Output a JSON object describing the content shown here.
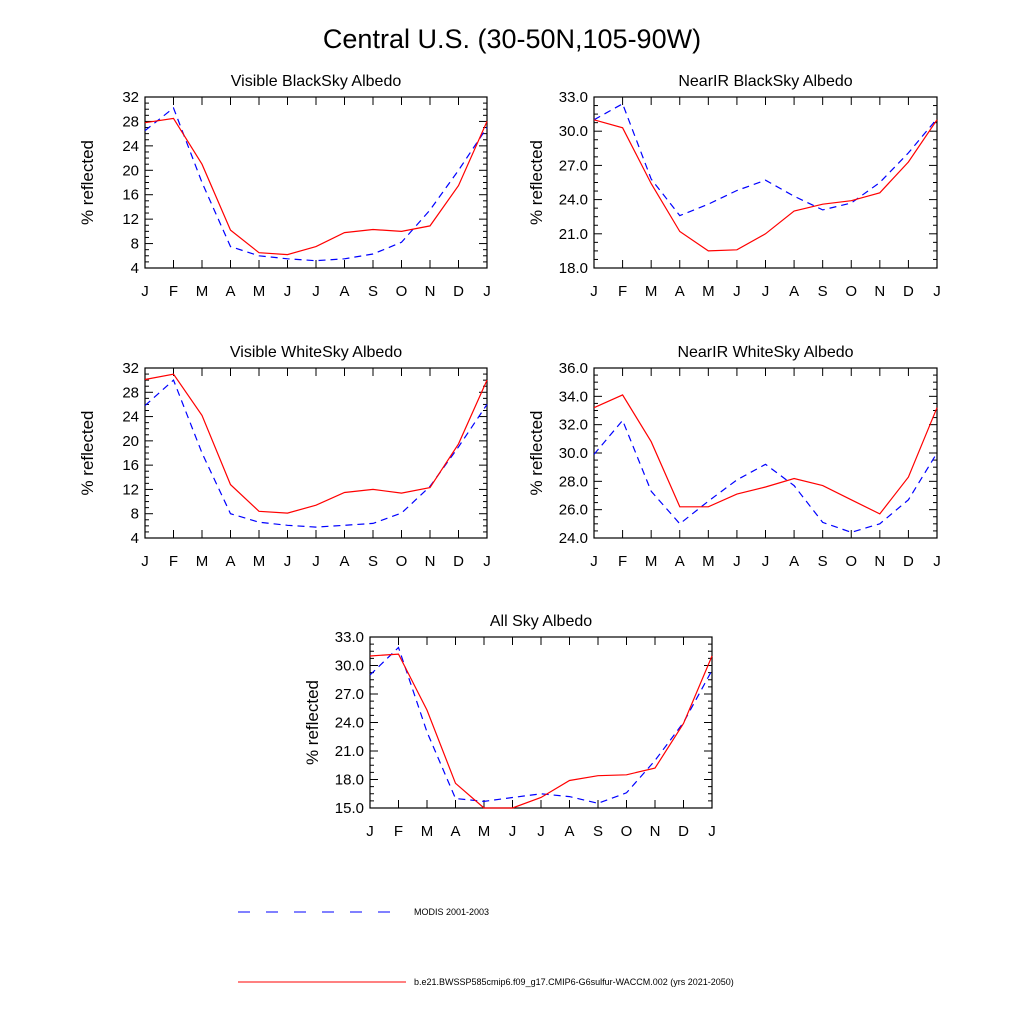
{
  "figure": {
    "title": "Central U.S. (30-50N,105-90W)"
  },
  "legend": [
    {
      "label": "MODIS 2001-2003",
      "color": "#0000ff",
      "style": "dashed"
    },
    {
      "label": "b.e21.BWSSP585cmip6.f09_g17.CMIP6-G6sulfur-WACCM.002 (yrs 2021-2050)",
      "color": "#ff0000",
      "style": "solid"
    }
  ],
  "chart_data": [
    {
      "type": "line",
      "title": "Visible BlackSky Albedo",
      "ylabel": "% reflected",
      "xlabel": "",
      "x": [
        "J",
        "F",
        "M",
        "A",
        "M",
        "J",
        "J",
        "A",
        "S",
        "O",
        "N",
        "D",
        "J"
      ],
      "ylim": [
        4,
        32
      ],
      "yticks": [
        "4",
        "8",
        "12",
        "16",
        "20",
        "24",
        "28",
        "32"
      ],
      "series": [
        {
          "name": "MODIS 2001-2003",
          "color": "#0000ff",
          "dash": true,
          "values": [
            26.5,
            30.2,
            18.0,
            7.5,
            6.0,
            5.5,
            5.2,
            5.5,
            6.3,
            8.2,
            13.5,
            20.0,
            27.0
          ]
        },
        {
          "name": "b.e21.BWSSP585cmip6.f09_g17.CMIP6-G6sulfur-WACCM.002 (yrs 2021-2050)",
          "color": "#ff0000",
          "dash": false,
          "values": [
            27.8,
            28.5,
            21.0,
            10.2,
            6.5,
            6.2,
            7.5,
            9.8,
            10.3,
            10.0,
            10.9,
            17.5,
            28.0
          ]
        }
      ]
    },
    {
      "type": "line",
      "title": "NearIR BlackSky Albedo",
      "ylabel": "% reflected",
      "xlabel": "",
      "x": [
        "J",
        "F",
        "M",
        "A",
        "M",
        "J",
        "J",
        "A",
        "S",
        "O",
        "N",
        "D",
        "J"
      ],
      "ylim": [
        18.0,
        33.0
      ],
      "yticks": [
        "18.0",
        "21.0",
        "24.0",
        "27.0",
        "30.0",
        "33.0"
      ],
      "series": [
        {
          "name": "MODIS 2001-2003",
          "color": "#0000ff",
          "dash": true,
          "values": [
            31.0,
            32.4,
            25.8,
            22.6,
            23.6,
            24.8,
            25.7,
            24.3,
            23.1,
            23.7,
            25.5,
            28.1,
            31.1
          ]
        },
        {
          "name": "b.e21.BWSSP585cmip6.f09_g17.CMIP6-G6sulfur-WACCM.002 (yrs 2021-2050)",
          "color": "#ff0000",
          "dash": false,
          "values": [
            31.0,
            30.3,
            25.4,
            21.2,
            19.5,
            19.6,
            21.0,
            23.0,
            23.6,
            23.9,
            24.6,
            27.3,
            31.0
          ]
        }
      ]
    },
    {
      "type": "line",
      "title": "Visible WhiteSky Albedo",
      "ylabel": "% reflected",
      "xlabel": "",
      "x": [
        "J",
        "F",
        "M",
        "A",
        "M",
        "J",
        "J",
        "A",
        "S",
        "O",
        "N",
        "D",
        "J"
      ],
      "ylim": [
        4,
        32
      ],
      "yticks": [
        "4",
        "8",
        "12",
        "16",
        "20",
        "24",
        "28",
        "32"
      ],
      "series": [
        {
          "name": "MODIS 2001-2003",
          "color": "#0000ff",
          "dash": true,
          "values": [
            25.8,
            30.0,
            18.0,
            8.0,
            6.6,
            6.1,
            5.8,
            6.1,
            6.4,
            8.1,
            12.5,
            19.0,
            26.0
          ]
        },
        {
          "name": "b.e21.BWSSP585cmip6.f09_g17.CMIP6-G6sulfur-WACCM.002 (yrs 2021-2050)",
          "color": "#ff0000",
          "dash": false,
          "values": [
            30.1,
            31.0,
            24.2,
            12.8,
            8.4,
            8.1,
            9.4,
            11.5,
            12.0,
            11.4,
            12.3,
            19.5,
            30.0
          ]
        }
      ]
    },
    {
      "type": "line",
      "title": "NearIR WhiteSky Albedo",
      "ylabel": "% reflected",
      "xlabel": "",
      "x": [
        "J",
        "F",
        "M",
        "A",
        "M",
        "J",
        "J",
        "A",
        "S",
        "O",
        "N",
        "D",
        "J"
      ],
      "ylim": [
        24.0,
        36.0
      ],
      "yticks": [
        "24.0",
        "26.0",
        "28.0",
        "30.0",
        "32.0",
        "34.0",
        "36.0"
      ],
      "series": [
        {
          "name": "MODIS 2001-2003",
          "color": "#0000ff",
          "dash": true,
          "values": [
            29.9,
            32.3,
            27.3,
            25.0,
            26.6,
            28.1,
            29.2,
            27.7,
            25.1,
            24.4,
            25.0,
            26.7,
            30.0
          ]
        },
        {
          "name": "b.e21.BWSSP585cmip6.f09_g17.CMIP6-G6sulfur-WACCM.002 (yrs 2021-2050)",
          "color": "#ff0000",
          "dash": false,
          "values": [
            33.2,
            34.1,
            30.8,
            26.2,
            26.2,
            27.1,
            27.6,
            28.2,
            27.7,
            26.7,
            25.7,
            28.3,
            33.2
          ]
        }
      ]
    },
    {
      "type": "line",
      "title": "All Sky Albedo",
      "ylabel": "% reflected",
      "xlabel": "",
      "x": [
        "J",
        "F",
        "M",
        "A",
        "M",
        "J",
        "J",
        "A",
        "S",
        "O",
        "N",
        "D",
        "J"
      ],
      "ylim": [
        15.0,
        33.0
      ],
      "yticks": [
        "15.0",
        "18.0",
        "21.0",
        "24.0",
        "27.0",
        "30.0",
        "33.0"
      ],
      "series": [
        {
          "name": "MODIS 2001-2003",
          "color": "#0000ff",
          "dash": true,
          "values": [
            29.0,
            31.9,
            23.0,
            16.0,
            15.7,
            16.1,
            16.5,
            16.2,
            15.5,
            16.6,
            20.0,
            24.0,
            29.5
          ]
        },
        {
          "name": "b.e21.BWSSP585cmip6.f09_g17.CMIP6-G6sulfur-WACCM.002 (yrs 2021-2050)",
          "color": "#ff0000",
          "dash": false,
          "values": [
            31.0,
            31.2,
            25.3,
            17.6,
            15.0,
            15.0,
            16.1,
            17.9,
            18.4,
            18.5,
            19.2,
            23.9,
            31.0
          ]
        }
      ]
    }
  ]
}
